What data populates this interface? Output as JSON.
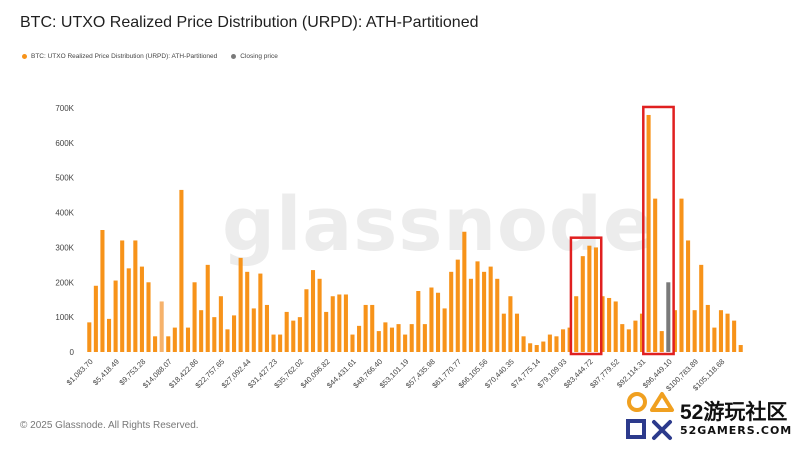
{
  "title": "BTC: UTXO Realized Price Distribution (URPD): ATH-Partitioned",
  "legend": [
    {
      "label": "BTC: UTXO Realized Price Distribution (URPD): ATH-Partitioned",
      "color": "#f7931a"
    },
    {
      "label": "Closing price",
      "color": "#7a7a7a"
    }
  ],
  "watermark": "glassnode",
  "footer": "© 2025 Glassnode. All Rights Reserved.",
  "site_logo": {
    "main": "52游玩社区",
    "sub": "52GAMERS.COM"
  },
  "colors": {
    "bar": "#f7931a",
    "bar_alt": "#f6b26b",
    "closing": "#7a7a7a",
    "highlight_box": "#e02020",
    "grid": "#eeeeee"
  },
  "chart_data": {
    "type": "bar",
    "title": "BTC: UTXO Realized Price Distribution (URPD): ATH-Partitioned",
    "xlabel": "",
    "ylabel": "",
    "ylim": [
      0,
      700000
    ],
    "yticks": [
      0,
      100000,
      200000,
      300000,
      400000,
      500000,
      600000,
      700000
    ],
    "ytick_labels": [
      "0",
      "100K",
      "200K",
      "300K",
      "400K",
      "500K",
      "600K",
      "700K"
    ],
    "grid": false,
    "legend_position": "top-left",
    "x_tick_labels": [
      "$1,083.70",
      "$5,418.49",
      "$9,753.28",
      "$14,088.07",
      "$18,422.86",
      "$22,757.65",
      "$27,092.44",
      "$31,427.23",
      "$35,762.02",
      "$40,096.82",
      "$44,431.61",
      "$48,766.40",
      "$53,101.19",
      "$57,435.98",
      "$61,770.77",
      "$66,105.56",
      "$70,440.35",
      "$74,775.14",
      "$79,109.93",
      "$83,444.72",
      "$87,779.52",
      "$92,114.31",
      "$96,449.10",
      "$100,783.89",
      "$105,118.68"
    ],
    "series": [
      {
        "name": "BTC: UTXO Realized Price Distribution (URPD): ATH-Partitioned",
        "values": [
          85000,
          190000,
          350000,
          95000,
          205000,
          320000,
          240000,
          320000,
          245000,
          200000,
          45000,
          145000,
          45000,
          70000,
          465000,
          70000,
          200000,
          120000,
          250000,
          100000,
          160000,
          65000,
          105000,
          270000,
          230000,
          125000,
          225000,
          135000,
          50000,
          50000,
          115000,
          90000,
          100000,
          180000,
          235000,
          210000,
          115000,
          160000,
          165000,
          165000,
          50000,
          75000,
          135000,
          135000,
          60000,
          85000,
          70000,
          80000,
          50000,
          80000,
          175000,
          80000,
          185000,
          170000,
          125000,
          230000,
          265000,
          345000,
          210000,
          260000,
          230000,
          245000,
          210000,
          110000,
          160000,
          110000,
          45000,
          25000,
          20000,
          30000,
          50000,
          45000,
          65000,
          70000,
          160000,
          275000,
          305000,
          300000,
          160000,
          155000,
          145000,
          80000,
          65000,
          90000,
          110000,
          680000,
          440000,
          60000,
          200000,
          120000,
          440000,
          320000,
          120000,
          250000,
          135000,
          70000,
          120000,
          110000,
          90000,
          20000
        ],
        "alt_color_index": 11
      }
    ],
    "closing_price_bar_index": 88,
    "highlight_ranges": [
      [
        74,
        77
      ],
      [
        85,
        88
      ]
    ]
  }
}
